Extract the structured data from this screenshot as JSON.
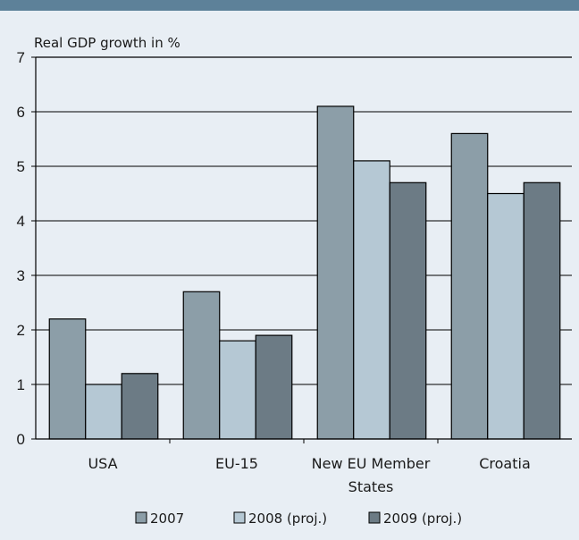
{
  "chart_data": {
    "type": "bar",
    "ylabel": "Real GDP growth in %",
    "ylim": [
      0,
      7
    ],
    "yticks": [
      0,
      1,
      2,
      3,
      4,
      5,
      6,
      7
    ],
    "grid": true,
    "legend_placement": "bottom",
    "categories": [
      [
        "USA"
      ],
      [
        "EU-15"
      ],
      [
        "New EU Member",
        "States"
      ],
      [
        "Croatia"
      ]
    ],
    "series": [
      {
        "name": "2007",
        "color": "#8c9ea8",
        "values": [
          2.2,
          2.7,
          6.1,
          5.6
        ]
      },
      {
        "name": "2008 (proj.)",
        "color": "#b5c8d4",
        "values": [
          1.0,
          1.8,
          5.1,
          4.5
        ]
      },
      {
        "name": "2009 (proj.)",
        "color": "#6c7b85",
        "values": [
          1.2,
          1.9,
          4.7,
          4.7
        ]
      }
    ]
  }
}
